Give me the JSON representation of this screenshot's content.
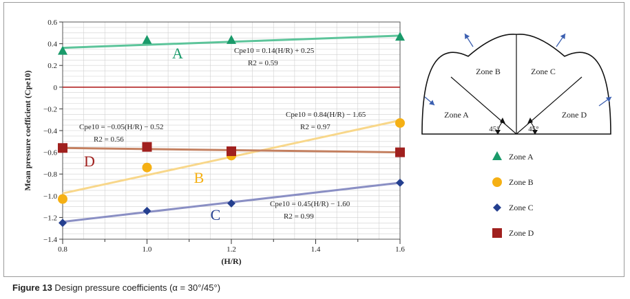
{
  "caption": {
    "figure": "Figure 13",
    "text": "Design pressure coefficients (α = 30°/45°)"
  },
  "colors": {
    "zone_a": "#1a9a6a",
    "zone_a_line": "#5cc49a",
    "zone_b": "#f5b014",
    "zone_b_line": "#f8d78a",
    "zone_c": "#243f8f",
    "zone_c_line": "#8a8fc4",
    "zone_d": "#a0201e",
    "zone_d_line": "#c48060",
    "zero_line": "#b22222",
    "grid": "#d0d0d0"
  },
  "chart_data": {
    "type": "scatter",
    "xlabel": "(H/R)",
    "ylabel": "Mean pressure coefficient (Cpe10)",
    "xlim": [
      0.8,
      1.6
    ],
    "ylim": [
      -1.4,
      0.6
    ],
    "x_ticks": [
      "0.8",
      "1.0",
      "1.2",
      "1.4",
      "1.6"
    ],
    "y_ticks": [
      "0.6",
      "0.4",
      "0.2",
      "0",
      "−0.2",
      "−0.4",
      "−0.6",
      "−0.8",
      "−1.0",
      "−1.2",
      "−1.4"
    ],
    "y_tick_values": [
      0.6,
      0.4,
      0.2,
      0,
      -0.2,
      -0.4,
      -0.6,
      -0.8,
      -1.0,
      -1.2,
      -1.4
    ],
    "x_tick_values": [
      0.8,
      1.0,
      1.2,
      1.4,
      1.6
    ],
    "grid": true,
    "series": [
      {
        "name": "Zone A",
        "marker": "triangle",
        "x": [
          0.8,
          1.0,
          1.2,
          1.6
        ],
        "y": [
          0.33,
          0.43,
          0.43,
          0.46
        ],
        "fit": {
          "slope": 0.14,
          "intercept": 0.25
        },
        "label": "A",
        "equation": "Cpe10 = 0.14(H/R) + 0.25",
        "r2": "R2 = 0.59"
      },
      {
        "name": "Zone B",
        "marker": "circle",
        "x": [
          0.8,
          1.0,
          1.2,
          1.6
        ],
        "y": [
          -1.03,
          -0.74,
          -0.63,
          -0.33
        ],
        "fit": {
          "slope": 0.84,
          "intercept": -1.65
        },
        "label": "B",
        "equation": "Cpe10 = 0.84(H/R) − 1.65",
        "r2": "R2 = 0.97"
      },
      {
        "name": "Zone C",
        "marker": "diamond",
        "x": [
          0.8,
          1.0,
          1.2,
          1.6
        ],
        "y": [
          -1.25,
          -1.14,
          -1.07,
          -0.88
        ],
        "fit": {
          "slope": 0.45,
          "intercept": -1.6
        },
        "label": "C",
        "equation": "Cpe10 = 0.45(H/R) − 1.60",
        "r2": "R2 = 0.99"
      },
      {
        "name": "Zone D",
        "marker": "square",
        "x": [
          0.8,
          1.0,
          1.2,
          1.6
        ],
        "y": [
          -0.56,
          -0.55,
          -0.59,
          -0.6
        ],
        "fit": {
          "slope": -0.05,
          "intercept": -0.52
        },
        "label": "D",
        "equation": "Cpe10 = −0.05(H/R) − 0.52",
        "r2": "R2 = 0.56"
      }
    ]
  },
  "diagram": {
    "zones": [
      "Zone A",
      "Zone B",
      "Zone C",
      "Zone D"
    ],
    "angles": [
      "45°",
      "45°"
    ]
  },
  "legend": [
    "Zone A",
    "Zone B",
    "Zone C",
    "Zone D"
  ]
}
